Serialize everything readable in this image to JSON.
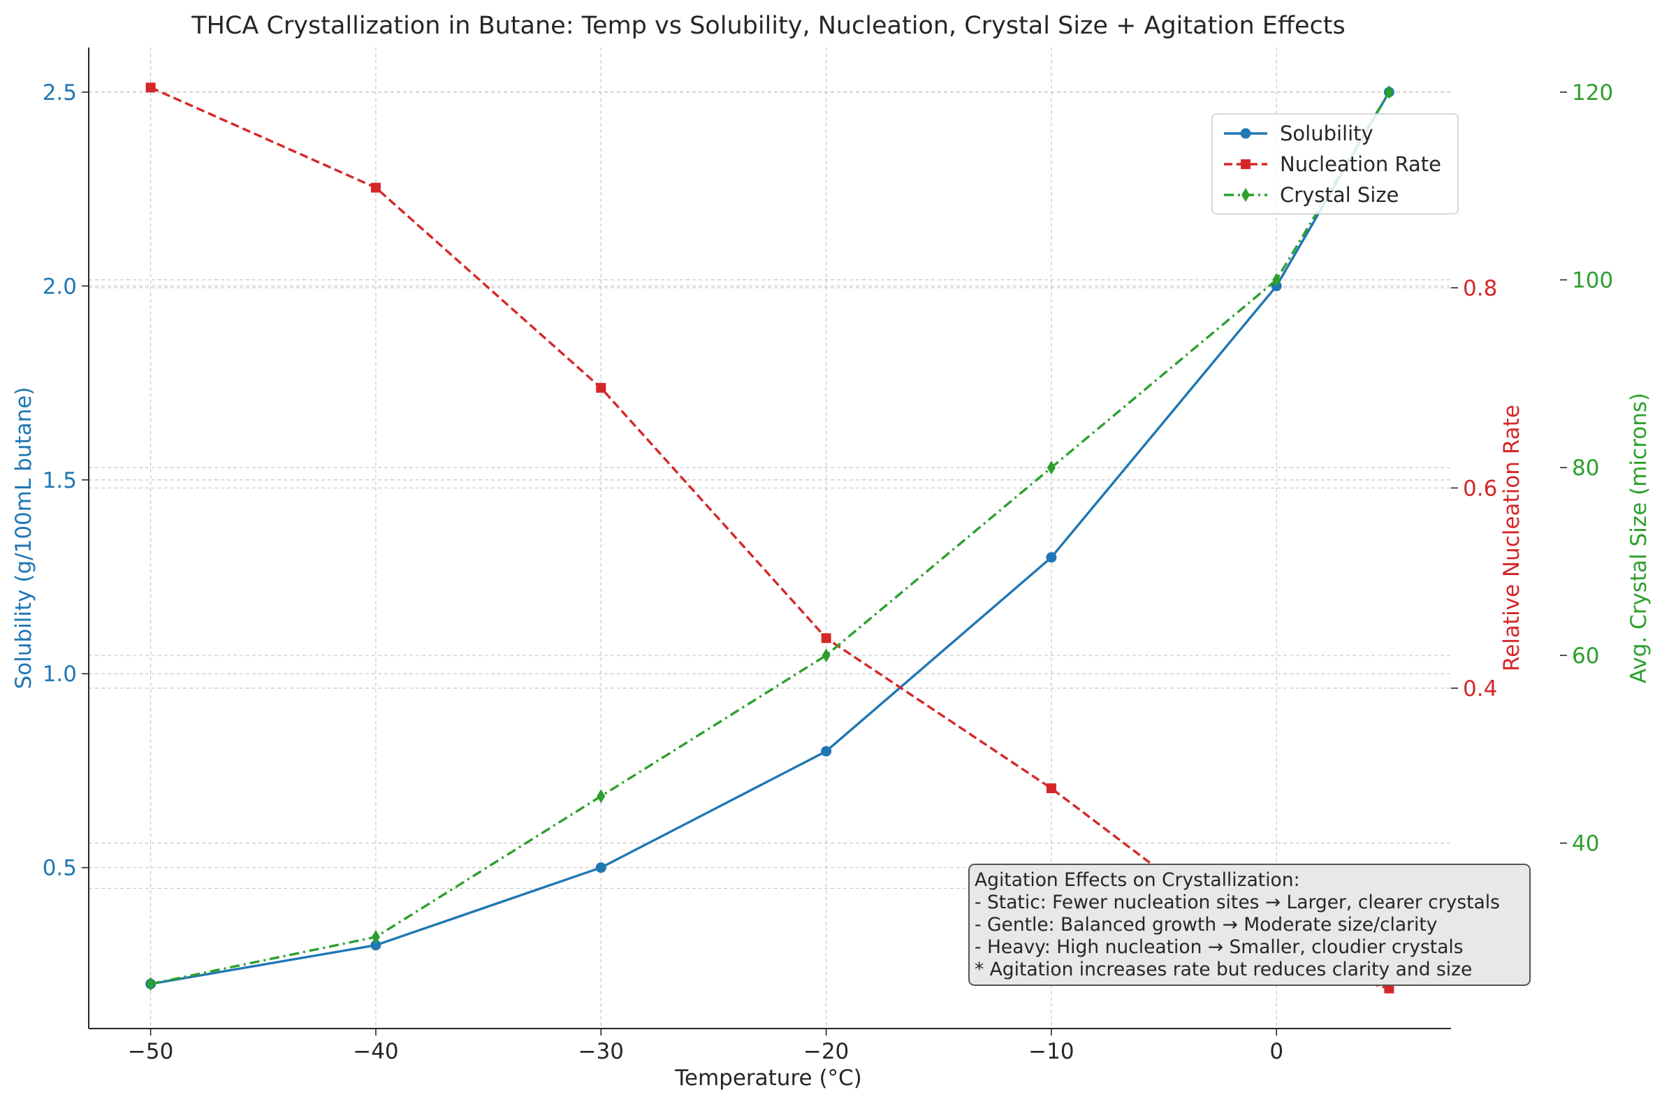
{
  "chart_data": {
    "type": "line",
    "title": "THCA Crystallization in Butane: Temp vs Solubility, Nucleation, Crystal Size + Agitation Effects",
    "xlabel": "Temperature (°C)",
    "x": [
      -50,
      -40,
      -30,
      -20,
      -10,
      0,
      5
    ],
    "xlim": [
      -52.75,
      7.75
    ],
    "x_ticks": [
      -50,
      -40,
      -30,
      -20,
      -10,
      0
    ],
    "x_tick_labels": [
      "−50",
      "−40",
      "−30",
      "−20",
      "−10",
      "0"
    ],
    "grid": true,
    "legend_position": "top-right",
    "axes": {
      "left": {
        "label": "Solubility (g/100mL butane)",
        "color": "#1f77b4",
        "ylim": [
          0.085,
          2.615
        ],
        "ticks": [
          0.5,
          1.0,
          1.5,
          2.0,
          2.5
        ],
        "tick_labels": [
          "0.5",
          "1.0",
          "1.5",
          "2.0",
          "2.5"
        ]
      },
      "right1": {
        "label": "Relative Nucleation Rate",
        "color": "#d62728",
        "ylim": [
          0.06,
          1.04
        ],
        "ticks": [
          0.2,
          0.4,
          0.6,
          0.8
        ],
        "tick_labels": [
          "0.2",
          "0.4",
          "0.6",
          "0.8"
        ]
      },
      "right2": {
        "label": "Avg. Crystal Size (microns)",
        "color": "#2ca02c",
        "ylim": [
          20.25,
          124.75
        ],
        "ticks": [
          40,
          60,
          80,
          100,
          120
        ],
        "tick_labels": [
          "40",
          "60",
          "80",
          "100",
          "120"
        ]
      }
    },
    "series": [
      {
        "name": "Solubility",
        "axis": "left",
        "color": "#1f77b4",
        "dash": "solid",
        "marker": "circle",
        "values": [
          0.2,
          0.3,
          0.5,
          0.8,
          1.3,
          2.0,
          2.5
        ]
      },
      {
        "name": "Nucleation Rate",
        "axis": "right1",
        "color": "#d62728",
        "dash": "dashed",
        "marker": "square",
        "values": [
          1.0,
          0.9,
          0.7,
          0.45,
          0.3,
          0.13,
          0.1
        ]
      },
      {
        "name": "Crystal Size",
        "axis": "right2",
        "color": "#2ca02c",
        "dash": "dashdot",
        "marker": "diamond",
        "values": [
          25,
          30,
          45,
          60,
          80,
          100,
          120
        ]
      }
    ],
    "annotation": {
      "lines": [
        "Agitation Effects on Crystallization:",
        "- Static: Fewer nucleation sites → Larger, clearer crystals",
        "- Gentle: Balanced growth → Moderate size/clarity",
        "- Heavy: High nucleation → Smaller, cloudier crystals",
        "* Agitation increases rate but reduces clarity and size"
      ]
    }
  }
}
